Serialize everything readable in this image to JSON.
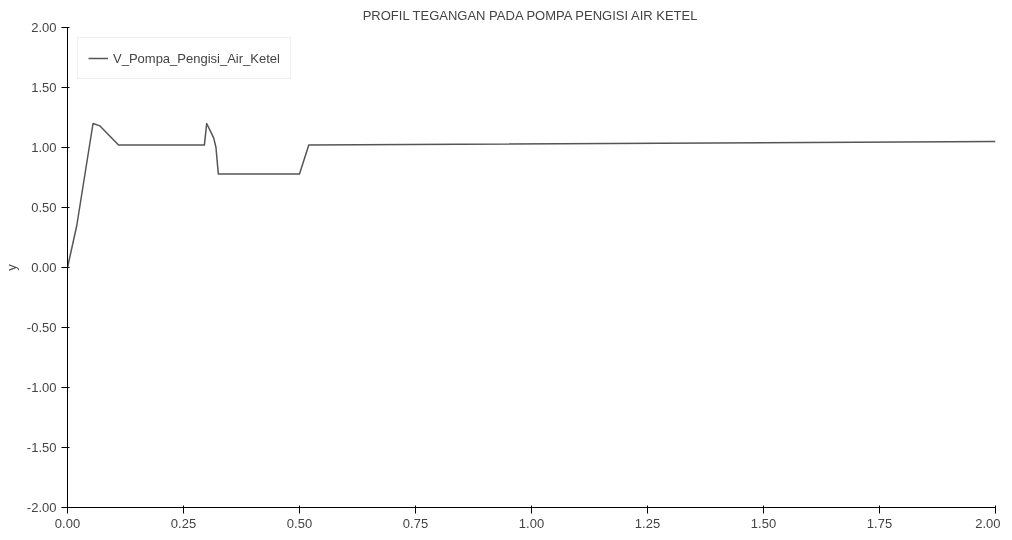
{
  "chart_data": {
    "type": "line",
    "title": "PROFIL TEGANGAN PADA POMPA PENGISI AIR KETEL",
    "ylabel": "y",
    "series": [
      {
        "name": "V_Pompa_Pengisi_Air_Ketel",
        "color": "#555555",
        "x": [
          0,
          0.02,
          0.055,
          0.07,
          0.11,
          0.295,
          0.3,
          0.315,
          0.32,
          0.325,
          0.5,
          0.52,
          2.0
        ],
        "values": [
          0,
          0.35,
          1.2,
          1.18,
          1.02,
          1.02,
          1.2,
          1.08,
          1.0,
          0.78,
          0.78,
          1.02,
          1.05
        ]
      }
    ],
    "xlim": [
      0,
      2
    ],
    "ylim": [
      -2,
      2
    ],
    "xticks": [
      {
        "value": 0,
        "label": "0.00"
      },
      {
        "value": 0.25,
        "label": "0.25"
      },
      {
        "value": 0.5,
        "label": "0.50"
      },
      {
        "value": 0.75,
        "label": "0.75"
      },
      {
        "value": 1,
        "label": "1.00"
      },
      {
        "value": 1.25,
        "label": "1.25"
      },
      {
        "value": 1.5,
        "label": "1.50"
      },
      {
        "value": 1.75,
        "label": "1.75"
      },
      {
        "value": 2,
        "label": "2.00"
      }
    ],
    "yticks": [
      {
        "value": -2,
        "label": "-2.00"
      },
      {
        "value": -1.5,
        "label": "-1.50"
      },
      {
        "value": -1,
        "label": "-1.00"
      },
      {
        "value": -0.5,
        "label": "-0.50"
      },
      {
        "value": 0,
        "label": "0.00"
      },
      {
        "value": 0.5,
        "label": "0.50"
      },
      {
        "value": 1,
        "label": "1.00"
      },
      {
        "value": 1.5,
        "label": "1.50"
      },
      {
        "value": 2,
        "label": "2.00"
      }
    ],
    "legend": "top left",
    "grid": false,
    "line_style": "solid"
  }
}
